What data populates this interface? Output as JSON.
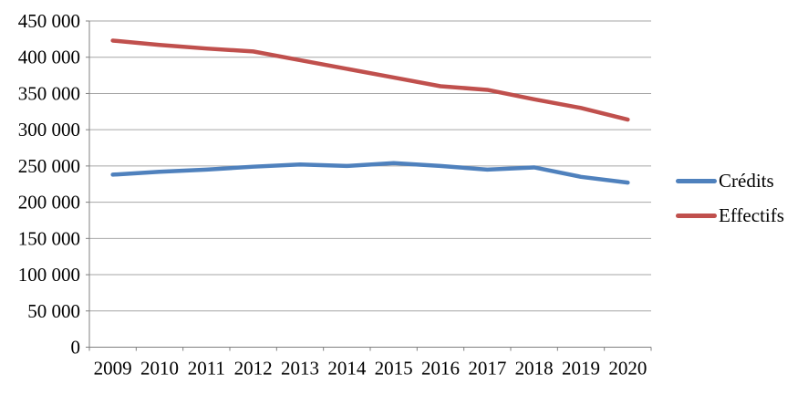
{
  "chart_data": {
    "type": "line",
    "title": "",
    "xlabel": "",
    "ylabel": "",
    "x": [
      2009,
      2010,
      2011,
      2012,
      2013,
      2014,
      2015,
      2016,
      2017,
      2018,
      2019,
      2020
    ],
    "x_tick_labels": [
      "2009",
      "2010",
      "2011",
      "2012",
      "2013",
      "2014",
      "2015",
      "2016",
      "2017",
      "2018",
      "2019",
      "2020"
    ],
    "series": [
      {
        "name": "Crédits",
        "color": "#4F81BD",
        "values": [
          238000,
          242000,
          245000,
          249000,
          252000,
          250000,
          254000,
          250000,
          245000,
          248000,
          235000,
          227000
        ]
      },
      {
        "name": "Effectifs",
        "color": "#C0504D",
        "values": [
          423000,
          417000,
          412000,
          408000,
          396000,
          384000,
          372000,
          360000,
          355000,
          342000,
          330000,
          314000
        ]
      }
    ],
    "ylim": [
      0,
      450000
    ],
    "y_tick_step": 50000,
    "y_tick_labels": [
      "0",
      "50 000",
      "100 000",
      "150 000",
      "200 000",
      "250 000",
      "300 000",
      "350 000",
      "400 000",
      "450 000"
    ],
    "grid": true,
    "legend_position": "right"
  },
  "colors": {
    "gridline": "#A6A6A6",
    "axis": "#808080",
    "text": "#000000",
    "background": "#FFFFFF"
  }
}
